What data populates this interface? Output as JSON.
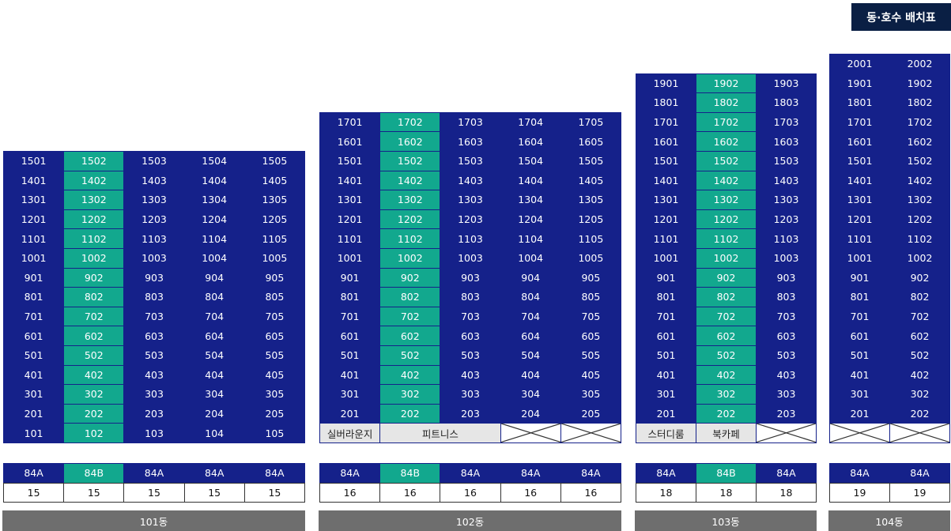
{
  "title": "동·호수 배치표",
  "buildings": [
    {
      "name": "101동",
      "columns": 5,
      "highlight_col": 1,
      "rows": [
        [
          {
            "t": "1501"
          },
          {
            "t": "1502"
          },
          {
            "t": "1503"
          },
          {
            "t": "1504"
          },
          {
            "t": "1505"
          }
        ],
        [
          {
            "t": "1401"
          },
          {
            "t": "1402"
          },
          {
            "t": "1403"
          },
          {
            "t": "1404"
          },
          {
            "t": "1405"
          }
        ],
        [
          {
            "t": "1301"
          },
          {
            "t": "1302"
          },
          {
            "t": "1303"
          },
          {
            "t": "1304"
          },
          {
            "t": "1305"
          }
        ],
        [
          {
            "t": "1201"
          },
          {
            "t": "1202"
          },
          {
            "t": "1203"
          },
          {
            "t": "1204"
          },
          {
            "t": "1205"
          }
        ],
        [
          {
            "t": "1101"
          },
          {
            "t": "1102"
          },
          {
            "t": "1103"
          },
          {
            "t": "1104"
          },
          {
            "t": "1105"
          }
        ],
        [
          {
            "t": "1001"
          },
          {
            "t": "1002"
          },
          {
            "t": "1003"
          },
          {
            "t": "1004"
          },
          {
            "t": "1005"
          }
        ],
        [
          {
            "t": "901"
          },
          {
            "t": "902"
          },
          {
            "t": "903"
          },
          {
            "t": "904"
          },
          {
            "t": "905"
          }
        ],
        [
          {
            "t": "801"
          },
          {
            "t": "802"
          },
          {
            "t": "803"
          },
          {
            "t": "804"
          },
          {
            "t": "805"
          }
        ],
        [
          {
            "t": "701"
          },
          {
            "t": "702"
          },
          {
            "t": "703"
          },
          {
            "t": "704"
          },
          {
            "t": "705"
          }
        ],
        [
          {
            "t": "601"
          },
          {
            "t": "602"
          },
          {
            "t": "603"
          },
          {
            "t": "604"
          },
          {
            "t": "605"
          }
        ],
        [
          {
            "t": "501"
          },
          {
            "t": "502"
          },
          {
            "t": "503"
          },
          {
            "t": "504"
          },
          {
            "t": "505"
          }
        ],
        [
          {
            "t": "401"
          },
          {
            "t": "402"
          },
          {
            "t": "403"
          },
          {
            "t": "404"
          },
          {
            "t": "405"
          }
        ],
        [
          {
            "t": "301"
          },
          {
            "t": "302"
          },
          {
            "t": "303"
          },
          {
            "t": "304"
          },
          {
            "t": "305"
          }
        ],
        [
          {
            "t": "201"
          },
          {
            "t": "202"
          },
          {
            "t": "203"
          },
          {
            "t": "204"
          },
          {
            "t": "205"
          }
        ],
        [
          {
            "t": "101"
          },
          {
            "t": "102"
          },
          {
            "t": "103"
          },
          {
            "t": "104"
          },
          {
            "t": "105"
          }
        ]
      ],
      "types": [
        "84A",
        "84B",
        "84A",
        "84A",
        "84A"
      ],
      "counts": [
        "15",
        "15",
        "15",
        "15",
        "15"
      ]
    },
    {
      "name": "102동",
      "columns": 5,
      "highlight_col": 1,
      "rows": [
        [
          {
            "t": "1701"
          },
          {
            "t": "1702"
          },
          {
            "t": "1703"
          },
          {
            "t": "1704"
          },
          {
            "t": "1705"
          }
        ],
        [
          {
            "t": "1601"
          },
          {
            "t": "1602"
          },
          {
            "t": "1603"
          },
          {
            "t": "1604"
          },
          {
            "t": "1605"
          }
        ],
        [
          {
            "t": "1501"
          },
          {
            "t": "1502"
          },
          {
            "t": "1503"
          },
          {
            "t": "1504"
          },
          {
            "t": "1505"
          }
        ],
        [
          {
            "t": "1401"
          },
          {
            "t": "1402"
          },
          {
            "t": "1403"
          },
          {
            "t": "1404"
          },
          {
            "t": "1405"
          }
        ],
        [
          {
            "t": "1301"
          },
          {
            "t": "1302"
          },
          {
            "t": "1303"
          },
          {
            "t": "1304"
          },
          {
            "t": "1305"
          }
        ],
        [
          {
            "t": "1201"
          },
          {
            "t": "1202"
          },
          {
            "t": "1203"
          },
          {
            "t": "1204"
          },
          {
            "t": "1205"
          }
        ],
        [
          {
            "t": "1101"
          },
          {
            "t": "1102"
          },
          {
            "t": "1103"
          },
          {
            "t": "1104"
          },
          {
            "t": "1105"
          }
        ],
        [
          {
            "t": "1001"
          },
          {
            "t": "1002"
          },
          {
            "t": "1003"
          },
          {
            "t": "1004"
          },
          {
            "t": "1005"
          }
        ],
        [
          {
            "t": "901"
          },
          {
            "t": "902"
          },
          {
            "t": "903"
          },
          {
            "t": "904"
          },
          {
            "t": "905"
          }
        ],
        [
          {
            "t": "801"
          },
          {
            "t": "802"
          },
          {
            "t": "803"
          },
          {
            "t": "804"
          },
          {
            "t": "805"
          }
        ],
        [
          {
            "t": "701"
          },
          {
            "t": "702"
          },
          {
            "t": "703"
          },
          {
            "t": "704"
          },
          {
            "t": "705"
          }
        ],
        [
          {
            "t": "601"
          },
          {
            "t": "602"
          },
          {
            "t": "603"
          },
          {
            "t": "604"
          },
          {
            "t": "605"
          }
        ],
        [
          {
            "t": "501"
          },
          {
            "t": "502"
          },
          {
            "t": "503"
          },
          {
            "t": "504"
          },
          {
            "t": "505"
          }
        ],
        [
          {
            "t": "401"
          },
          {
            "t": "402"
          },
          {
            "t": "403"
          },
          {
            "t": "404"
          },
          {
            "t": "405"
          }
        ],
        [
          {
            "t": "301"
          },
          {
            "t": "302"
          },
          {
            "t": "303"
          },
          {
            "t": "304"
          },
          {
            "t": "305"
          }
        ],
        [
          {
            "t": "201"
          },
          {
            "t": "202"
          },
          {
            "t": "203"
          },
          {
            "t": "204"
          },
          {
            "t": "205"
          }
        ],
        [
          {
            "t": "실버라운지",
            "k": "facility"
          },
          {
            "t": "피트니스",
            "k": "facility",
            "span": 2
          },
          {
            "k": "empty"
          },
          {
            "k": "empty"
          }
        ]
      ],
      "types": [
        "84A",
        "84B",
        "84A",
        "84A",
        "84A"
      ],
      "counts": [
        "16",
        "16",
        "16",
        "16",
        "16"
      ]
    },
    {
      "name": "103동",
      "columns": 3,
      "highlight_col": 1,
      "rows": [
        [
          {
            "t": "1901"
          },
          {
            "t": "1902"
          },
          {
            "t": "1903"
          }
        ],
        [
          {
            "t": "1801"
          },
          {
            "t": "1802"
          },
          {
            "t": "1803"
          }
        ],
        [
          {
            "t": "1701"
          },
          {
            "t": "1702"
          },
          {
            "t": "1703"
          }
        ],
        [
          {
            "t": "1601"
          },
          {
            "t": "1602"
          },
          {
            "t": "1603"
          }
        ],
        [
          {
            "t": "1501"
          },
          {
            "t": "1502"
          },
          {
            "t": "1503"
          }
        ],
        [
          {
            "t": "1401"
          },
          {
            "t": "1402"
          },
          {
            "t": "1403"
          }
        ],
        [
          {
            "t": "1301"
          },
          {
            "t": "1302"
          },
          {
            "t": "1303"
          }
        ],
        [
          {
            "t": "1201"
          },
          {
            "t": "1202"
          },
          {
            "t": "1203"
          }
        ],
        [
          {
            "t": "1101"
          },
          {
            "t": "1102"
          },
          {
            "t": "1103"
          }
        ],
        [
          {
            "t": "1001"
          },
          {
            "t": "1002"
          },
          {
            "t": "1003"
          }
        ],
        [
          {
            "t": "901"
          },
          {
            "t": "902"
          },
          {
            "t": "903"
          }
        ],
        [
          {
            "t": "801"
          },
          {
            "t": "802"
          },
          {
            "t": "803"
          }
        ],
        [
          {
            "t": "701"
          },
          {
            "t": "702"
          },
          {
            "t": "703"
          }
        ],
        [
          {
            "t": "601"
          },
          {
            "t": "602"
          },
          {
            "t": "603"
          }
        ],
        [
          {
            "t": "501"
          },
          {
            "t": "502"
          },
          {
            "t": "503"
          }
        ],
        [
          {
            "t": "401"
          },
          {
            "t": "402"
          },
          {
            "t": "403"
          }
        ],
        [
          {
            "t": "301"
          },
          {
            "t": "302"
          },
          {
            "t": "303"
          }
        ],
        [
          {
            "t": "201"
          },
          {
            "t": "202"
          },
          {
            "t": "203"
          }
        ],
        [
          {
            "t": "스터디룸",
            "k": "facility"
          },
          {
            "t": "북카페",
            "k": "facility"
          },
          {
            "k": "empty"
          }
        ]
      ],
      "types": [
        "84A",
        "84B",
        "84A"
      ],
      "counts": [
        "18",
        "18",
        "18"
      ]
    },
    {
      "name": "104동",
      "columns": 2,
      "highlight_col": -1,
      "rows": [
        [
          {
            "t": "2001"
          },
          {
            "t": "2002"
          }
        ],
        [
          {
            "t": "1901"
          },
          {
            "t": "1902"
          }
        ],
        [
          {
            "t": "1801"
          },
          {
            "t": "1802"
          }
        ],
        [
          {
            "t": "1701"
          },
          {
            "t": "1702"
          }
        ],
        [
          {
            "t": "1601"
          },
          {
            "t": "1602"
          }
        ],
        [
          {
            "t": "1501"
          },
          {
            "t": "1502"
          }
        ],
        [
          {
            "t": "1401"
          },
          {
            "t": "1402"
          }
        ],
        [
          {
            "t": "1301"
          },
          {
            "t": "1302"
          }
        ],
        [
          {
            "t": "1201"
          },
          {
            "t": "1202"
          }
        ],
        [
          {
            "t": "1101"
          },
          {
            "t": "1102"
          }
        ],
        [
          {
            "t": "1001"
          },
          {
            "t": "1002"
          }
        ],
        [
          {
            "t": "901"
          },
          {
            "t": "902"
          }
        ],
        [
          {
            "t": "801"
          },
          {
            "t": "802"
          }
        ],
        [
          {
            "t": "701"
          },
          {
            "t": "702"
          }
        ],
        [
          {
            "t": "601"
          },
          {
            "t": "602"
          }
        ],
        [
          {
            "t": "501"
          },
          {
            "t": "502"
          }
        ],
        [
          {
            "t": "401"
          },
          {
            "t": "402"
          }
        ],
        [
          {
            "t": "301"
          },
          {
            "t": "302"
          }
        ],
        [
          {
            "t": "201"
          },
          {
            "t": "202"
          }
        ],
        [
          {
            "k": "empty"
          },
          {
            "k": "empty"
          }
        ]
      ],
      "types": [
        "84A",
        "84A"
      ],
      "counts": [
        "19",
        "19"
      ]
    }
  ],
  "colors": {
    "unit_blue": "#15218a",
    "highlight_green": "#12a88e",
    "name_bar_gray": "#6e6e6e",
    "title_navy": "#0a1f44"
  }
}
